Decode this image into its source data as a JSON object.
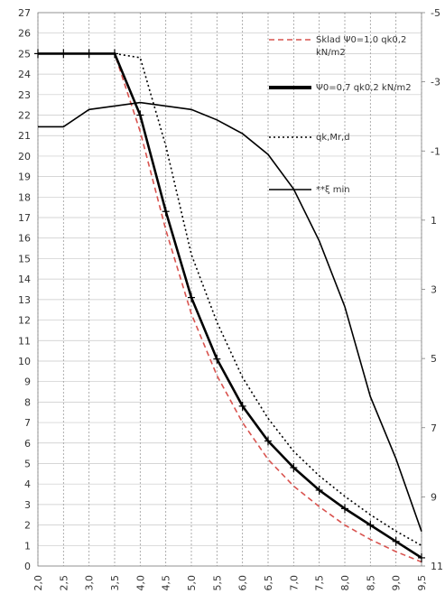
{
  "chart_data": {
    "type": "line",
    "x": [
      2.0,
      2.5,
      3.0,
      3.5,
      4.0,
      4.5,
      5.0,
      5.5,
      6.0,
      6.5,
      7.0,
      7.5,
      8.0,
      8.5,
      9.0,
      9.5
    ],
    "x_tick_labels": [
      "2,0",
      "2,5",
      "3,0",
      "3,5",
      "4,0",
      "4,5",
      "5,0",
      "5,5",
      "6,0",
      "6,5",
      "7,0",
      "7,5",
      "8,0",
      "8,5",
      "9,0",
      "9,5"
    ],
    "y_left_ticks": [
      "0",
      "1",
      "2",
      "3",
      "4",
      "5",
      "6",
      "7",
      "8",
      "9",
      "10",
      "11",
      "12",
      "13",
      "14",
      "15",
      "16",
      "17",
      "18",
      "19",
      "20",
      "21",
      "22",
      "23",
      "24",
      "25",
      "26",
      "27"
    ],
    "y_right_ticks": [
      "-5",
      "-3",
      "-1",
      "1",
      "3",
      "5",
      "7",
      "9",
      "11"
    ],
    "ylim_left": [
      0,
      27
    ],
    "ylim_right": [
      11,
      -5
    ],
    "xlim": [
      2.0,
      9.5
    ],
    "grid": true,
    "legend_position": "top-right",
    "series": [
      {
        "name": "Sklad Ψ0=1,0 qk0,2 kN/m2",
        "axis": "left",
        "color": "#d9534f",
        "style": "dashed",
        "values": [
          25.0,
          25.0,
          25.0,
          25.0,
          21.2,
          16.4,
          12.3,
          9.3,
          7.0,
          5.2,
          3.9,
          2.9,
          2.0,
          1.3,
          0.7,
          0.2
        ]
      },
      {
        "name": "Ψ0=0,7 qk0,2 kN/m2",
        "axis": "left",
        "color": "#000000",
        "style": "thick-markers",
        "values": [
          25.0,
          25.0,
          25.0,
          25.0,
          22.0,
          17.3,
          13.1,
          10.1,
          7.8,
          6.1,
          4.8,
          3.7,
          2.8,
          2.0,
          1.2,
          0.4
        ]
      },
      {
        "name": "qk,Mr,d",
        "axis": "left",
        "color": "#000000",
        "style": "dotted",
        "values": [
          25.0,
          25.0,
          25.0,
          25.0,
          24.8,
          20.5,
          15.2,
          11.9,
          9.2,
          7.2,
          5.6,
          4.4,
          3.4,
          2.5,
          1.7,
          1.0
        ]
      },
      {
        "name": "**ξ min",
        "axis": "right",
        "color": "#000000",
        "style": "solid",
        "values": [
          -1.7,
          -1.7,
          -2.2,
          -2.3,
          -2.4,
          -2.3,
          -2.2,
          -1.9,
          -1.5,
          -0.9,
          0.1,
          1.6,
          3.5,
          6.1,
          7.9,
          10.0
        ]
      }
    ]
  }
}
